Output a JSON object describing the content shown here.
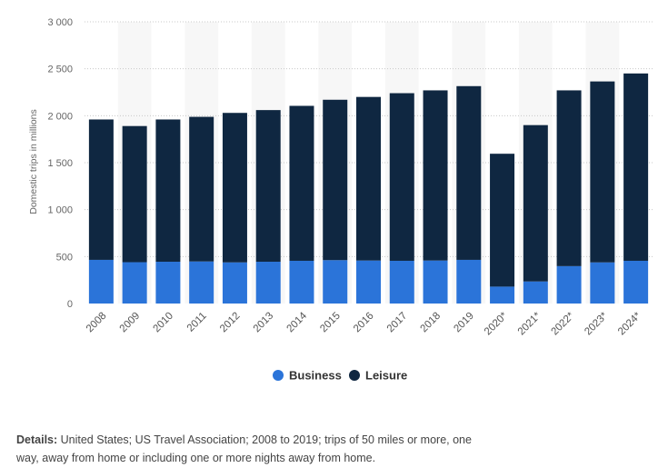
{
  "chart_data": {
    "type": "bar",
    "stacked": true,
    "categories": [
      "2008",
      "2009",
      "2010",
      "2011",
      "2012",
      "2013",
      "2014",
      "2015",
      "2016",
      "2017",
      "2018",
      "2019",
      "2020*",
      "2021*",
      "2022*",
      "2023*",
      "2024*"
    ],
    "series": [
      {
        "name": "Business",
        "color": "#2b74d9",
        "values": [
          465,
          440,
          445,
          448,
          438,
          445,
          455,
          462,
          458,
          455,
          458,
          465,
          180,
          235,
          398,
          438,
          455
        ]
      },
      {
        "name": "Leisure",
        "color": "#0f2741",
        "values": [
          1495,
          1450,
          1515,
          1540,
          1592,
          1615,
          1650,
          1708,
          1742,
          1785,
          1812,
          1850,
          1415,
          1665,
          1872,
          1927,
          1995
        ]
      }
    ],
    "ylabel": "Domestic trips in millions",
    "ylim": [
      0,
      3000
    ],
    "yticks": [
      0,
      500,
      1000,
      1500,
      2000,
      2500,
      3000
    ],
    "ytick_labels": [
      "0",
      "500",
      "1 000",
      "1 500",
      "2 000",
      "2 500",
      "3 000"
    ],
    "grid": true,
    "legend": "bottom-center"
  },
  "details": {
    "label": "Details:",
    "text": " United States; US Travel Association; 2008 to 2019; trips of 50 miles or more, one way, away from home or including one or more nights away from home."
  }
}
